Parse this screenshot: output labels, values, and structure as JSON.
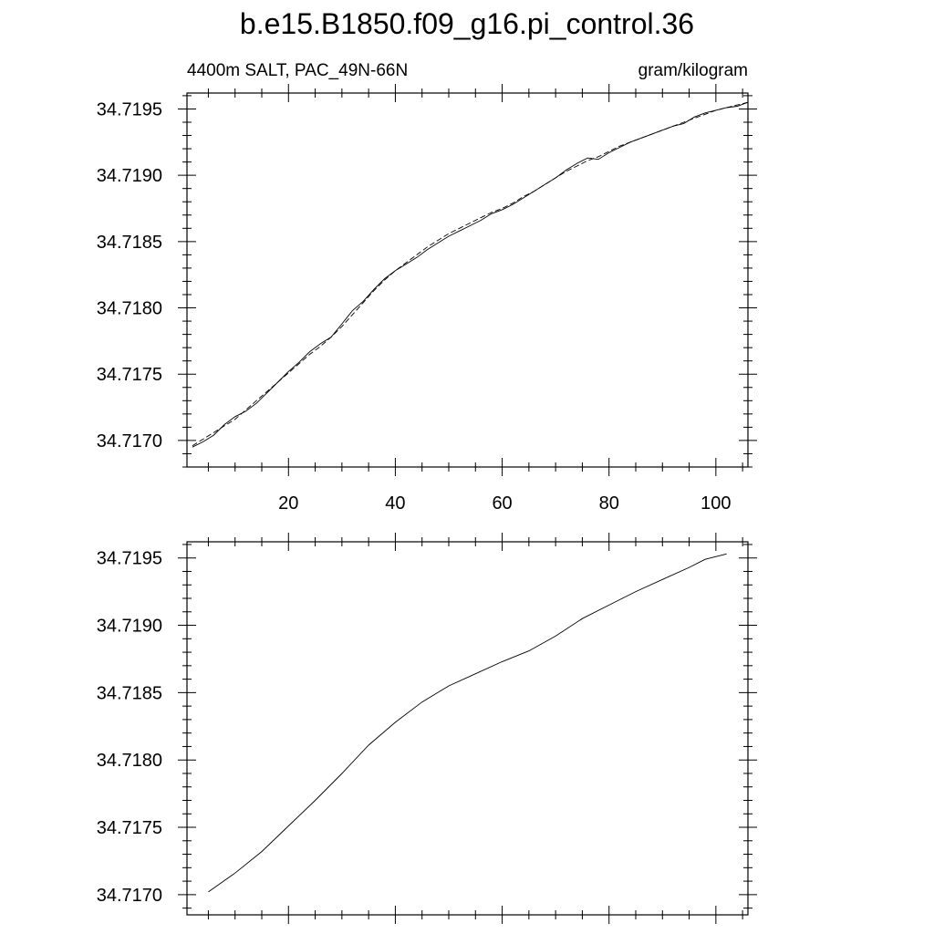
{
  "chart_data": {
    "title": "b.e15.B1850.f09_g16.pi_control.36",
    "panels": [
      {
        "type": "line",
        "left_label": "4400m SALT, PAC_49N-66N",
        "right_label": "gram/kilogram",
        "xlim": [
          1,
          106
        ],
        "ylim": [
          34.7168,
          34.71962
        ],
        "x_ticks": [
          20,
          40,
          60,
          80,
          100
        ],
        "x_tick_labels": [
          "20",
          "40",
          "60",
          "80",
          "100"
        ],
        "y_ticks": [
          34.717,
          34.7175,
          34.718,
          34.7185,
          34.719,
          34.7195
        ],
        "y_tick_labels": [
          "34.7170",
          "34.7175",
          "34.7180",
          "34.7185",
          "34.7190",
          "34.7195"
        ],
        "series": [
          {
            "style": "solid",
            "x": [
              2,
              4,
              6,
              8,
              10,
              12,
              14,
              16,
              18,
              20,
              22,
              24,
              26,
              28,
              30,
              32,
              34,
              36,
              38,
              40,
              42,
              44,
              46,
              48,
              50,
              52,
              54,
              56,
              58,
              60,
              62,
              64,
              66,
              68,
              70,
              72,
              74,
              76,
              78,
              80,
              82,
              84,
              86,
              88,
              90,
              92,
              94,
              96,
              98,
              100,
              102,
              104,
              106
            ],
            "y": [
              34.71695,
              34.71699,
              34.71704,
              34.71712,
              34.71718,
              34.71722,
              34.71728,
              34.71736,
              34.71744,
              34.71752,
              34.71759,
              34.71767,
              34.71773,
              34.71778,
              34.71788,
              34.71798,
              34.71805,
              34.71814,
              34.71822,
              34.71828,
              34.71833,
              34.71838,
              34.71844,
              34.71849,
              34.71854,
              34.71858,
              34.71862,
              34.71866,
              34.71871,
              34.71874,
              34.71878,
              34.71883,
              34.71888,
              34.71893,
              34.71898,
              34.71904,
              34.71909,
              34.71913,
              34.71912,
              34.71917,
              34.71921,
              34.71925,
              34.71928,
              34.71931,
              34.71934,
              34.71937,
              34.71939,
              34.71944,
              34.71947,
              34.71949,
              34.71951,
              34.71952,
              34.71955
            ]
          },
          {
            "style": "dashed",
            "x": [
              2,
              4,
              6,
              8,
              10,
              12,
              14,
              16,
              18,
              20,
              22,
              24,
              26,
              28,
              30,
              32,
              34,
              36,
              38,
              40,
              42,
              44,
              46,
              48,
              50,
              52,
              54,
              56,
              58,
              60,
              62,
              64,
              66,
              68,
              70,
              72,
              74,
              76,
              78,
              80,
              82,
              84,
              86,
              88,
              90,
              92,
              94,
              96,
              98,
              100,
              102,
              104,
              106
            ],
            "y": [
              34.71696,
              34.71701,
              34.71706,
              34.71711,
              34.71716,
              34.71723,
              34.7173,
              34.71737,
              34.71744,
              34.71751,
              34.71758,
              34.71765,
              34.71771,
              34.71778,
              34.71786,
              34.71795,
              34.71804,
              34.71813,
              34.71821,
              34.71828,
              34.71834,
              34.7184,
              34.71846,
              34.71851,
              34.71856,
              34.7186,
              34.71864,
              34.71868,
              34.71872,
              34.71875,
              34.71879,
              34.71884,
              34.71888,
              34.71893,
              34.71898,
              34.71903,
              34.71907,
              34.71911,
              34.71914,
              34.71918,
              34.71922,
              34.71925,
              34.71928,
              34.71931,
              34.71934,
              34.71937,
              34.7194,
              34.71943,
              34.71946,
              34.71949,
              34.71951,
              34.71953,
              34.71955
            ]
          }
        ]
      },
      {
        "type": "line",
        "xlim": [
          1,
          106
        ],
        "ylim": [
          34.71685,
          34.71962
        ],
        "x_ticks": [
          20,
          40,
          60,
          80,
          100
        ],
        "y_ticks": [
          34.717,
          34.7175,
          34.718,
          34.7185,
          34.719,
          34.7195
        ],
        "y_tick_labels": [
          "34.7170",
          "34.7175",
          "34.7180",
          "34.7185",
          "34.7190",
          "34.7195"
        ],
        "series": [
          {
            "style": "solid",
            "x": [
              5,
              10,
              15,
              20,
              25,
              30,
              35,
              40,
              45,
              50,
              55,
              60,
              65,
              70,
              75,
              80,
              85,
              90,
              95,
              98,
              102
            ],
            "y": [
              34.71702,
              34.71716,
              34.71732,
              34.71751,
              34.7177,
              34.7179,
              34.71811,
              34.71828,
              34.71843,
              34.71855,
              34.71864,
              34.71873,
              34.71881,
              34.71892,
              34.71905,
              34.71915,
              34.71925,
              34.71934,
              34.71943,
              34.71949,
              34.71953
            ]
          }
        ]
      }
    ]
  }
}
